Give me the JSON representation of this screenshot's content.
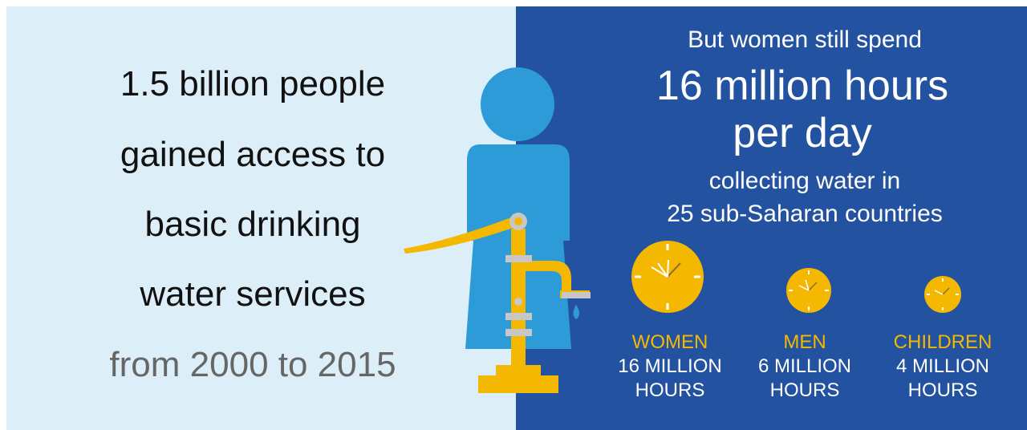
{
  "left": {
    "lines": [
      "1.5 billion people",
      "gained access to",
      "basic drinking",
      "water services"
    ],
    "period": "from 2000 to 2015"
  },
  "right": {
    "intro": "But women still spend",
    "headline": [
      "16 million hours",
      "per day"
    ],
    "detail": [
      "collecting water in",
      "25 sub-Saharan countries"
    ],
    "groups": [
      {
        "label": "WOMEN",
        "amount": "16 MILLION",
        "unit": "HOURS"
      },
      {
        "label": "MEN",
        "amount": "6 MILLION",
        "unit": "HOURS"
      },
      {
        "label": "CHILDREN",
        "amount": "4 MILLION",
        "unit": "HOURS"
      }
    ]
  }
}
